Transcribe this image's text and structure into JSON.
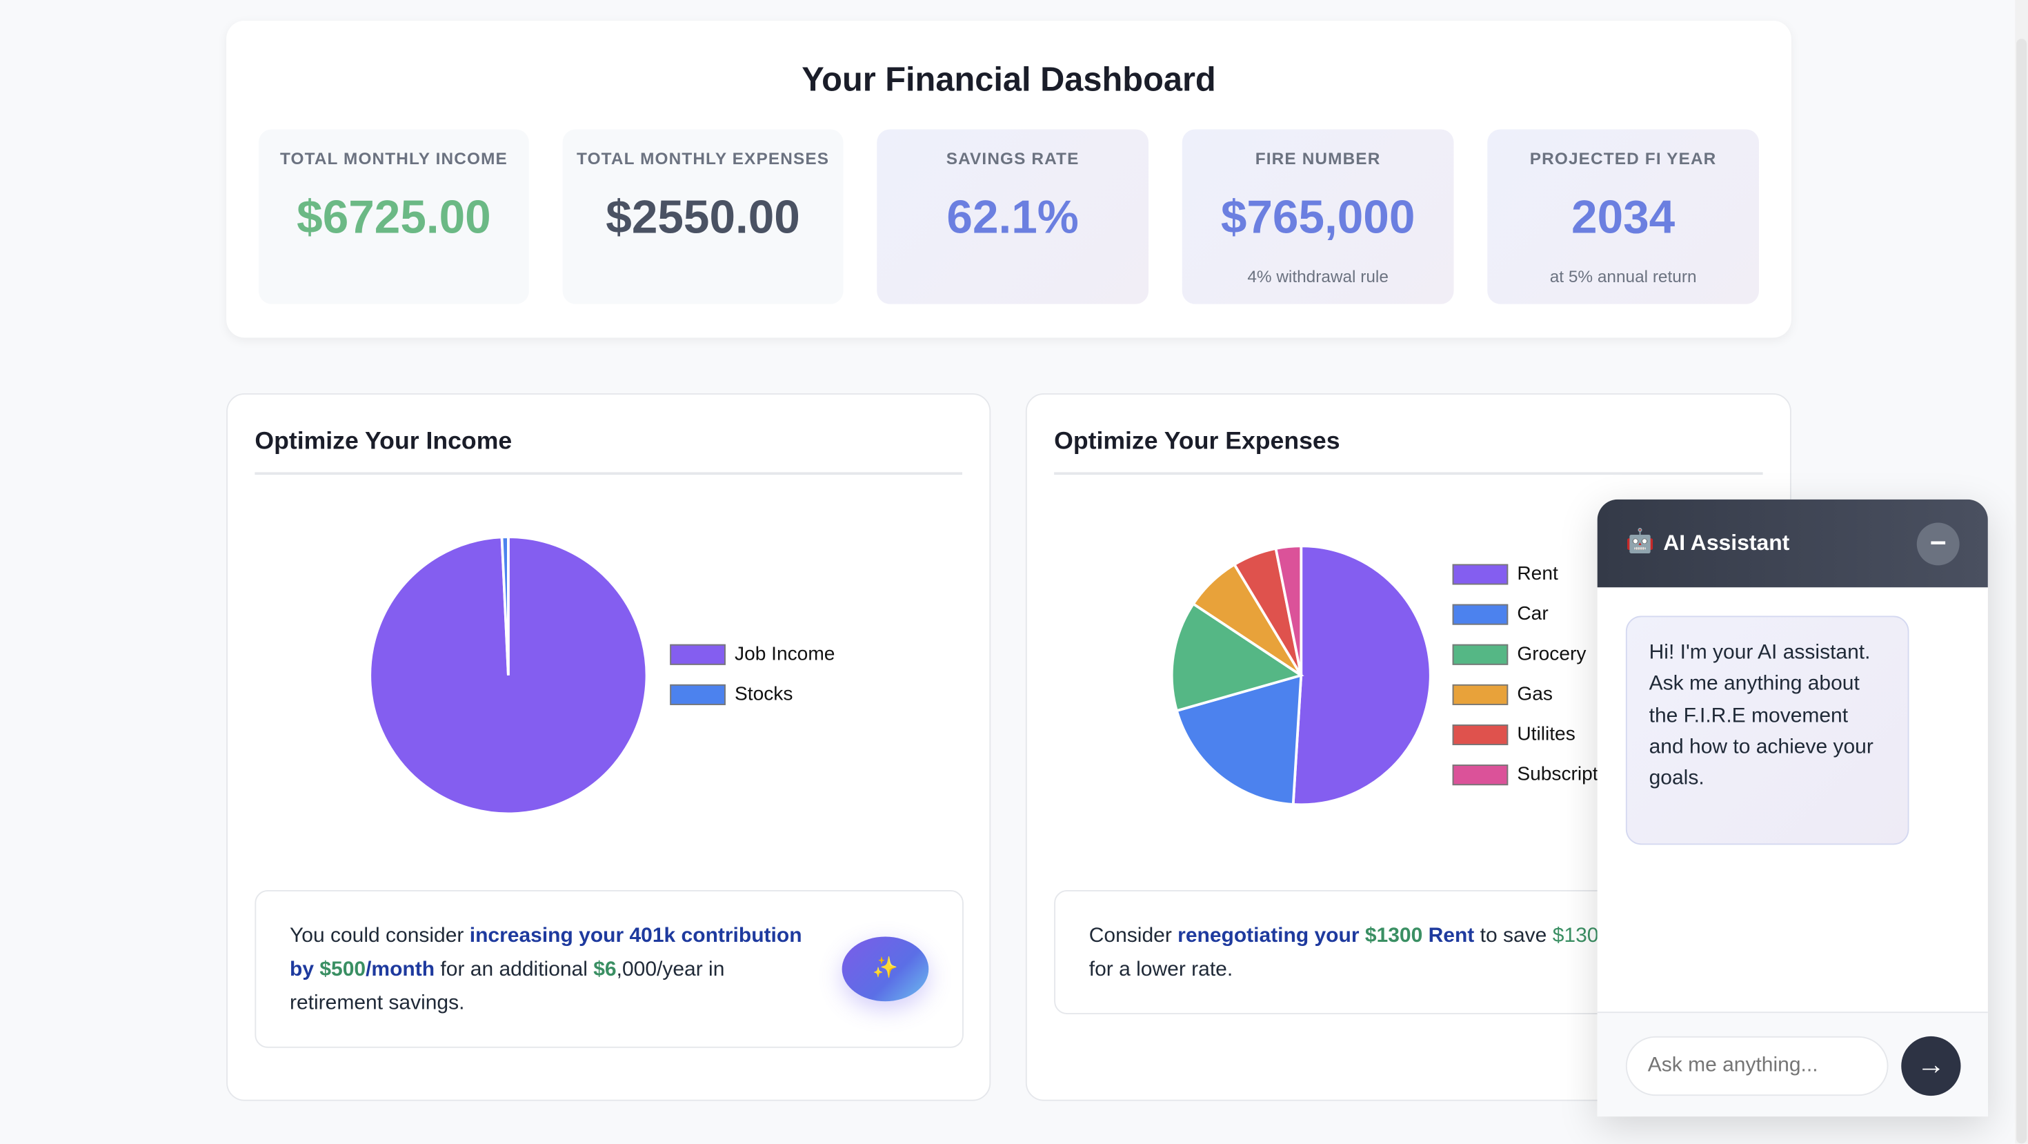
{
  "title": "Your Financial Dashboard",
  "stats": [
    {
      "label": "TOTAL MONTHLY INCOME",
      "value": "$6725.00",
      "sub": "",
      "color": "#6bb985"
    },
    {
      "label": "TOTAL MONTHLY EXPENSES",
      "value": "$2550.00",
      "sub": "",
      "color": "#4a5263"
    },
    {
      "label": "SAVINGS RATE",
      "value": "62.1%",
      "sub": "",
      "color": "#6b7fe0"
    },
    {
      "label": "FIRE NUMBER",
      "value": "$765,000",
      "sub": "4% withdrawal rule",
      "color": "#6b7fe0"
    },
    {
      "label": "PROJECTED FI YEAR",
      "value": "2034",
      "sub": "at 5% annual return",
      "color": "#6b7fe0"
    }
  ],
  "income": {
    "heading": "Optimize Your Income",
    "tip": {
      "t1": "You could consider ",
      "h1": "increasing your 401k contribution by ",
      "m1": "$500",
      "h2": "/month",
      "t2": " for an additional ",
      "m2": "$6",
      "t3": ",000/year in retirement savings."
    },
    "action_icon": "sparkles-icon"
  },
  "expenses": {
    "heading": "Optimize Your Expenses",
    "tip": {
      "t1": "Consider ",
      "h1": "renegotiating your ",
      "m1": "$1300",
      "h2": " Rent",
      "t2": " to save ",
      "m2": "$130",
      "t3": "/mo by asking for a lower rate."
    }
  },
  "chart_data": [
    {
      "type": "pie",
      "categories": [
        "Job Income",
        "Stocks"
      ],
      "values": [
        6675,
        50
      ],
      "colors": [
        "#845ef0",
        "#4c82ee"
      ],
      "legend": "right"
    },
    {
      "type": "pie",
      "categories": [
        "Rent",
        "Car",
        "Grocery",
        "Gas",
        "Utilites",
        "Subscriptions"
      ],
      "values": [
        1300,
        500,
        350,
        180,
        140,
        80
      ],
      "colors": [
        "#845ef0",
        "#4c82ee",
        "#55b785",
        "#e8a23a",
        "#df524d",
        "#db5299"
      ],
      "legend": "right"
    }
  ],
  "chat": {
    "title": "AI Assistant",
    "robot_icon": "robot-icon",
    "minimize": "−",
    "message": "Hi! I'm your AI assistant. Ask me anything about the F.I.R.E movement and how to achieve your goals.",
    "placeholder": "Ask me anything...",
    "send": "→"
  }
}
